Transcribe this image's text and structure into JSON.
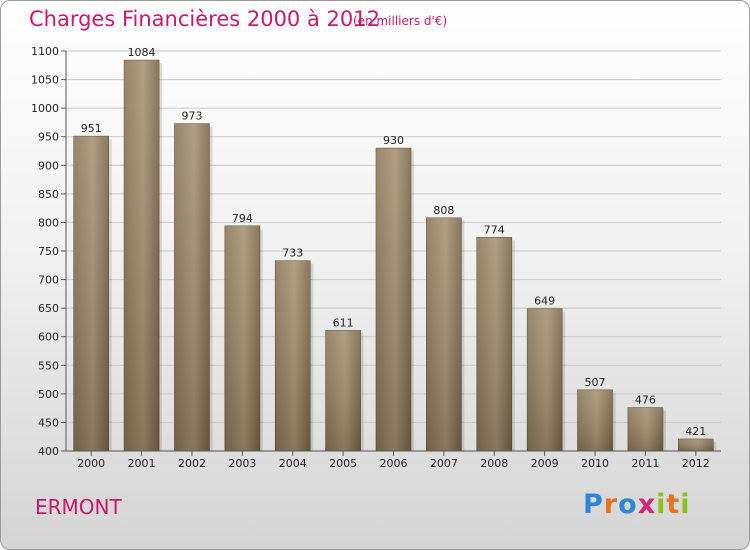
{
  "header": {
    "title": "Charges Financières 2000 à 2012",
    "subtitle": "(en milliers d'€)"
  },
  "location": "ERMONT",
  "brand": {
    "name": "Proxiti",
    "letters": [
      {
        "ch": "P",
        "color": "#2e86d6"
      },
      {
        "ch": "r",
        "color": "#e8731a"
      },
      {
        "ch": "o",
        "color": "#2e86d6"
      },
      {
        "ch": "x",
        "color": "#d8237a"
      },
      {
        "ch": "i",
        "color": "#8bbf22"
      },
      {
        "ch": "t",
        "color": "#e8731a"
      },
      {
        "ch": "i",
        "color": "#8bbf22"
      }
    ]
  },
  "colors": {
    "title": "#c8196e",
    "bar_dark": "#6f5a3f",
    "bar_light": "#ad9a7a"
  },
  "chart_data": {
    "type": "bar",
    "title": "Charges Financières 2000 à 2012",
    "subtitle": "(en milliers d'€)",
    "xlabel": "",
    "ylabel": "",
    "categories": [
      "2000",
      "2001",
      "2002",
      "2003",
      "2004",
      "2005",
      "2006",
      "2007",
      "2008",
      "2009",
      "2010",
      "2011",
      "2012"
    ],
    "values": [
      951,
      1084,
      973,
      794,
      733,
      611,
      930,
      808,
      774,
      649,
      507,
      476,
      421
    ],
    "ylim": [
      400,
      1100
    ],
    "yticks": [
      400,
      450,
      500,
      550,
      600,
      650,
      700,
      750,
      800,
      850,
      900,
      950,
      1000,
      1050,
      1100
    ],
    "grid": true,
    "legend": "none"
  }
}
